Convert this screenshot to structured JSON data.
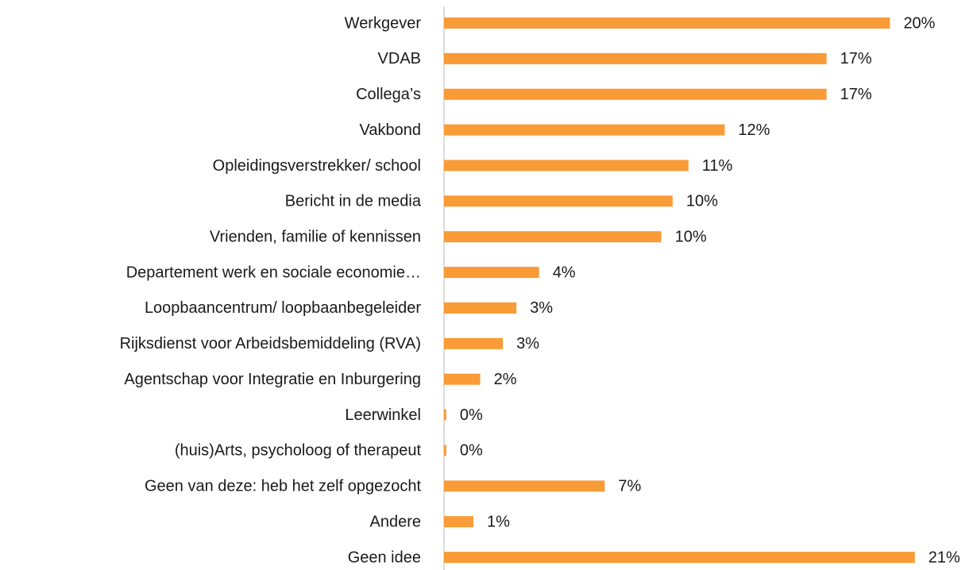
{
  "chart_data": {
    "type": "barh",
    "categories": [
      "Werkgever",
      "VDAB",
      "Collega’s",
      "Vakbond",
      "Opleidingsverstrekker/ school",
      "Bericht in de media",
      "Vrienden, familie of kennissen",
      "Departement werk en sociale economie…",
      "Loopbaancentrum/ loopbaanbegeleider",
      "Rijksdienst voor Arbeidsbemiddeling (RVA)",
      "Agentschap voor Integratie en Inburgering",
      "Leerwinkel",
      "(huis)Arts, psycholoog of therapeut",
      "Geen van deze: heb het zelf opgezocht",
      "Andere",
      "Geen idee"
    ],
    "values": [
      19.7,
      16.9,
      16.9,
      12.4,
      10.8,
      10.1,
      9.6,
      4.2,
      3.2,
      2.6,
      1.6,
      0.1,
      0.1,
      7.1,
      1.3,
      20.8
    ],
    "value_labels": [
      "20%",
      "17%",
      "17%",
      "12%",
      "11%",
      "10%",
      "10%",
      "4%",
      "3%",
      "3%",
      "2%",
      "0%",
      "0%",
      "7%",
      "1%",
      "21%"
    ],
    "color": "#f99b37",
    "xlim": [
      0,
      22
    ]
  }
}
